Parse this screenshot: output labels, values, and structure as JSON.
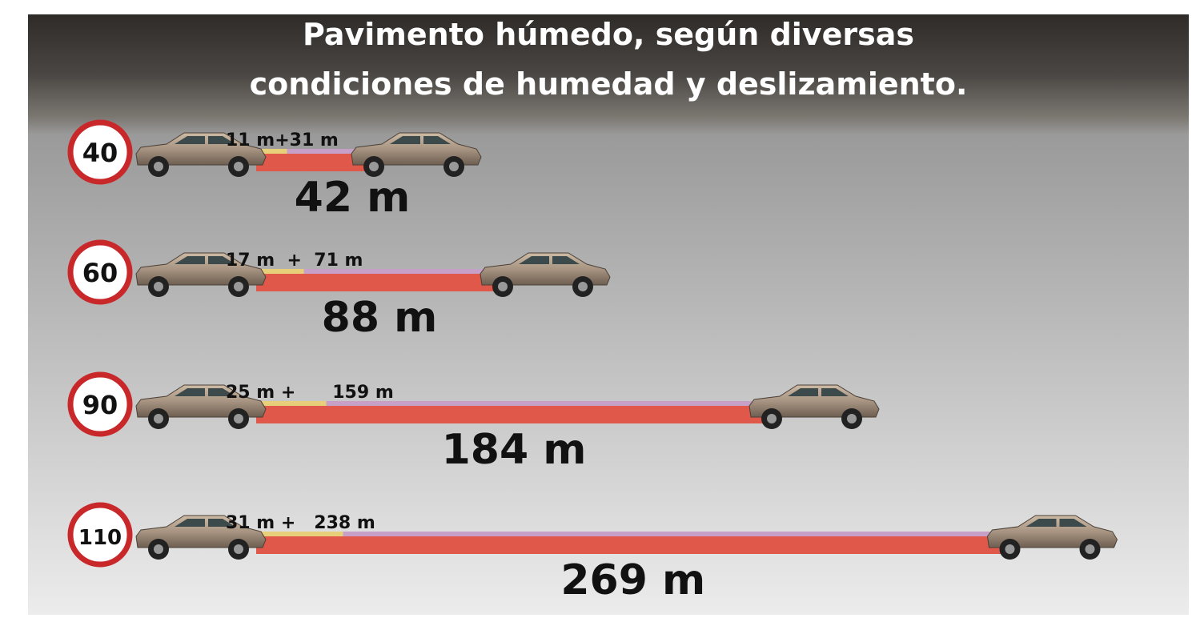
{
  "title": [
    "Pavimento húmedo, según diversas",
    "condiciones de humedad y deslizamiento."
  ],
  "rows": [
    {
      "speed": "40",
      "reaction": 11,
      "braking": 31,
      "total": 42,
      "parts_label": "11 m+31 m",
      "total_label": "42 m"
    },
    {
      "speed": "60",
      "reaction": 17,
      "braking": 71,
      "total": 88,
      "parts_label": "17 m  +  71 m",
      "total_label": "88 m"
    },
    {
      "speed": "90",
      "reaction": 25,
      "braking": 159,
      "total": 184,
      "parts_label": "25 m +      159 m",
      "total_label": "184 m"
    },
    {
      "speed": "110",
      "reaction": 31,
      "braking": 238,
      "total": 269,
      "parts_label": "31 m +   238 m",
      "total_label": "269 m"
    }
  ]
}
